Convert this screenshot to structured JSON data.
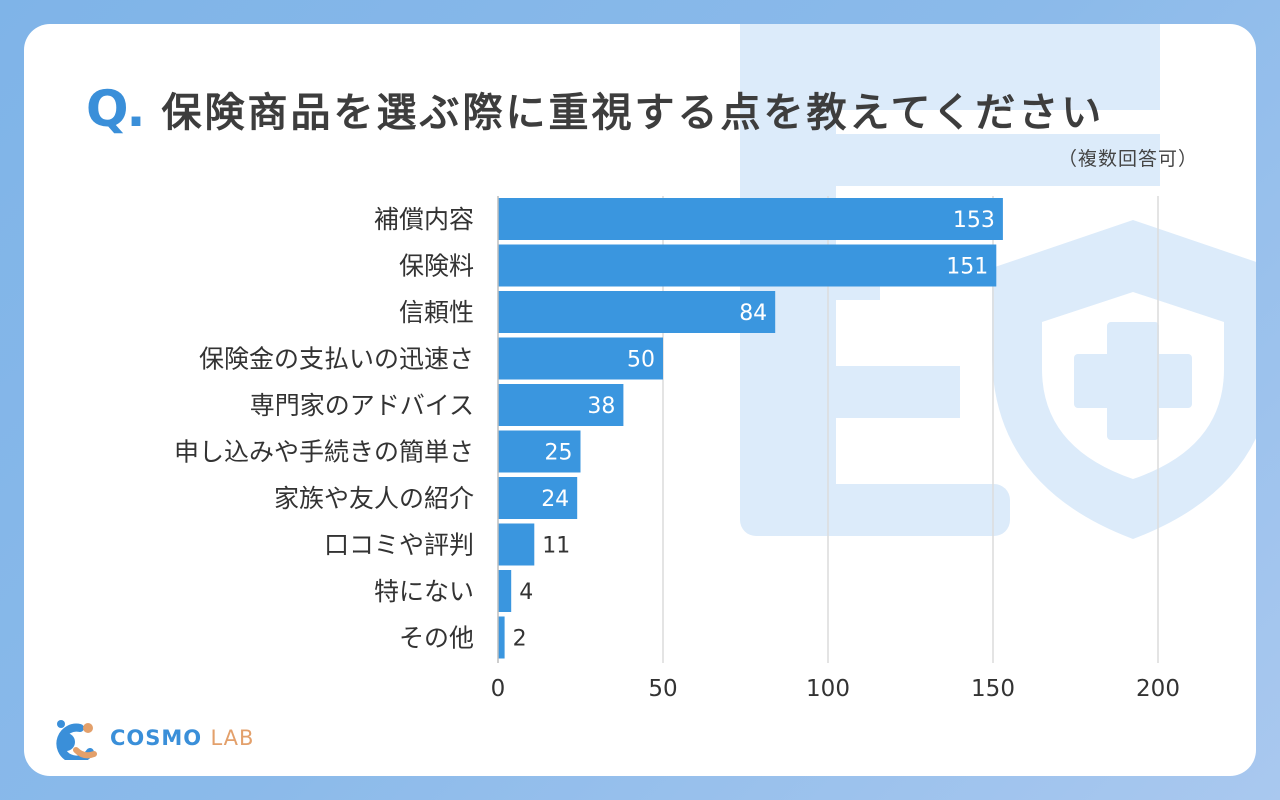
{
  "header": {
    "q_mark": "Q.",
    "title": "保険商品を選ぶ際に重視する点を教えてください",
    "subtitle": "（複数回答可）"
  },
  "brand": {
    "logo_main": "COSMO",
    "logo_sub": "LAB"
  },
  "colors": {
    "bar": "#3a96df",
    "accent": "#3a8fd9",
    "grid": "#dcdcdc",
    "decor": "#d9eafa"
  },
  "chart_data": {
    "type": "bar",
    "orientation": "horizontal",
    "categories": [
      "補償内容",
      "保険料",
      "信頼性",
      "保険金の支払いの迅速さ",
      "専門家のアドバイス",
      "申し込みや手続きの簡単さ",
      "家族や友人の紹介",
      "口コミや評判",
      "特にない",
      "その他"
    ],
    "values": [
      153,
      151,
      84,
      50,
      38,
      25,
      24,
      11,
      4,
      2
    ],
    "xlim": [
      0,
      200
    ],
    "xticks": [
      0,
      50,
      100,
      150,
      200
    ],
    "grid": true,
    "legend": "none"
  }
}
